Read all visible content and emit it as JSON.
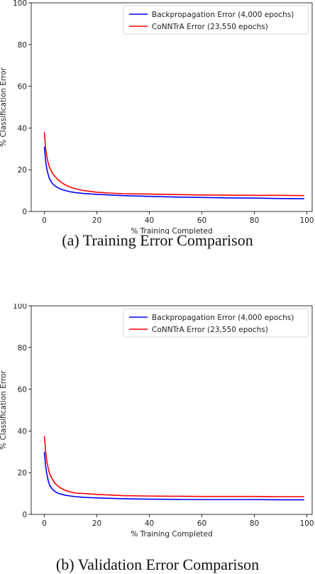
{
  "chart_data": [
    {
      "type": "line",
      "caption": "(a) Training Error Comparison",
      "xlabel": "% Training Completed",
      "ylabel": "% Classification Error",
      "xlim": [
        -5,
        102
      ],
      "ylim": [
        0,
        100
      ],
      "xticks": [
        0,
        20,
        40,
        60,
        80,
        100
      ],
      "yticks": [
        0,
        20,
        40,
        60,
        80,
        100
      ],
      "legend_position": "top-right",
      "grid": false,
      "series": [
        {
          "name": "Backpropagation Error (4,000 epochs)",
          "color": "#0000ff",
          "x": [
            0,
            0.5,
            1,
            1.5,
            2,
            3,
            4,
            5,
            6,
            8,
            10,
            12,
            15,
            20,
            25,
            30,
            40,
            50,
            60,
            70,
            80,
            90,
            99
          ],
          "y": [
            31,
            24,
            20,
            17.5,
            15.5,
            13.5,
            12.3,
            11.5,
            10.8,
            10,
            9.4,
            9,
            8.6,
            8.2,
            7.9,
            7.6,
            7.2,
            6.9,
            6.7,
            6.5,
            6.4,
            6.2,
            6.1
          ]
        },
        {
          "name": "CoNNTrA Error (23,550 epochs)",
          "color": "#ff0000",
          "x": [
            0,
            0.5,
            1,
            1.5,
            2,
            3,
            4,
            5,
            6,
            8,
            10,
            12,
            15,
            20,
            25,
            30,
            40,
            50,
            60,
            70,
            80,
            90,
            99
          ],
          "y": [
            38,
            30,
            26,
            23,
            21,
            18.5,
            16.8,
            15.5,
            14.3,
            12.7,
            11.6,
            10.8,
            10,
            9.2,
            8.8,
            8.5,
            8.3,
            8.1,
            7.9,
            7.8,
            7.7,
            7.7,
            7.6
          ]
        }
      ]
    },
    {
      "type": "line",
      "caption": "(b) Validation Error Comparison",
      "xlabel": "% Training Completed",
      "ylabel": "% Classification Error",
      "xlim": [
        -5,
        102
      ],
      "ylim": [
        0,
        100
      ],
      "xticks": [
        0,
        20,
        40,
        60,
        80,
        100
      ],
      "yticks": [
        0,
        20,
        40,
        60,
        80,
        100
      ],
      "legend_position": "top-right",
      "grid": false,
      "series": [
        {
          "name": "Backpropagation Error (4,000 epochs)",
          "color": "#0000ff",
          "x": [
            0,
            0.5,
            1,
            1.5,
            2,
            3,
            4,
            5,
            6,
            8,
            10,
            12,
            15,
            20,
            25,
            30,
            40,
            50,
            60,
            70,
            80,
            90,
            99
          ],
          "y": [
            30,
            23,
            19,
            16,
            14,
            12.2,
            11,
            10.3,
            9.8,
            9.2,
            8.8,
            8.5,
            8.2,
            7.9,
            7.7,
            7.5,
            7.3,
            7.2,
            7.1,
            7.1,
            7.1,
            7,
            7
          ]
        },
        {
          "name": "CoNNTrA Error (23,550 epochs)",
          "color": "#ff0000",
          "x": [
            0,
            0.5,
            1,
            1.5,
            2,
            3,
            4,
            5,
            6,
            8,
            10,
            12,
            15,
            20,
            25,
            30,
            40,
            50,
            60,
            70,
            80,
            90,
            99
          ],
          "y": [
            37.5,
            30,
            25,
            22,
            19.5,
            17,
            15,
            13.8,
            12.8,
            11.5,
            10.7,
            10.2,
            10,
            9.6,
            9.3,
            9,
            8.8,
            8.7,
            8.6,
            8.6,
            8.6,
            8.5,
            8.5
          ]
        }
      ]
    }
  ]
}
